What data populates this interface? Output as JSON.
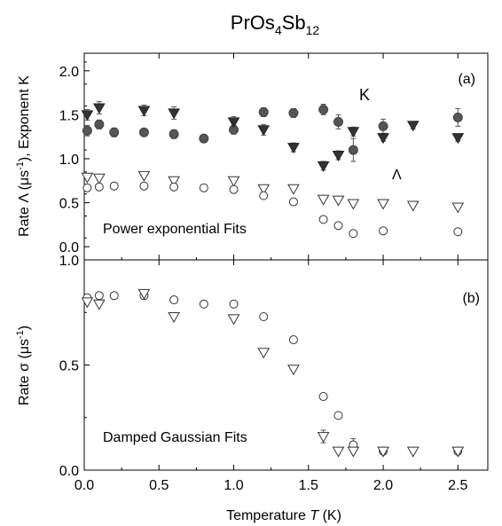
{
  "figure": {
    "title_main": "PrOs",
    "title_sub1": "4",
    "title_mid": "Sb",
    "title_sub2": "12",
    "xlabel_prefix": "Temperature ",
    "xlabel_var": "T",
    "xlabel_suffix": " (K)"
  },
  "chart_data": [
    {
      "panel": "(a)",
      "type": "scatter",
      "ylabel_prefix": "Rate Λ (μs",
      "ylabel_sup": "-1",
      "ylabel_suffix": "), Exponent K",
      "annotation": "Power exponential Fits",
      "series_label_K": "K",
      "series_label_Lambda": "Λ",
      "xlim": [
        0.0,
        2.7
      ],
      "ylim": [
        -0.15,
        2.2
      ],
      "xticks": [
        "0.0",
        "0.5",
        "1.0",
        "1.5",
        "2.0",
        "2.5"
      ],
      "yticks": [
        "0.0",
        "0.5",
        "1.0",
        "1.5",
        "2.0"
      ],
      "series": [
        {
          "marker": "filled-circle",
          "points": [
            {
              "x": 0.02,
              "y": 1.32,
              "err": 0.06
            },
            {
              "x": 0.1,
              "y": 1.39,
              "err": 0.05
            },
            {
              "x": 0.2,
              "y": 1.3,
              "err": 0.05
            },
            {
              "x": 0.4,
              "y": 1.3,
              "err": 0.04
            },
            {
              "x": 0.6,
              "y": 1.28,
              "err": 0.05
            },
            {
              "x": 0.8,
              "y": 1.23,
              "err": 0.04
            },
            {
              "x": 1.0,
              "y": 1.33,
              "err": 0.05
            },
            {
              "x": 1.2,
              "y": 1.53,
              "err": 0.05
            },
            {
              "x": 1.4,
              "y": 1.52,
              "err": 0.05
            },
            {
              "x": 1.6,
              "y": 1.56,
              "err": 0.06
            },
            {
              "x": 1.7,
              "y": 1.42,
              "err": 0.08
            },
            {
              "x": 1.8,
              "y": 1.1,
              "err": 0.13
            },
            {
              "x": 2.0,
              "y": 1.37,
              "err": 0.08
            },
            {
              "x": 2.5,
              "y": 1.47,
              "err": 0.1
            }
          ]
        },
        {
          "marker": "filled-triangle-down",
          "points": [
            {
              "x": 0.02,
              "y": 1.5,
              "err": 0.06
            },
            {
              "x": 0.1,
              "y": 1.58,
              "err": 0.07
            },
            {
              "x": 0.4,
              "y": 1.55,
              "err": 0.06
            },
            {
              "x": 0.6,
              "y": 1.52,
              "err": 0.07
            },
            {
              "x": 1.0,
              "y": 1.42,
              "err": 0.06
            },
            {
              "x": 1.2,
              "y": 1.33,
              "err": 0.06
            },
            {
              "x": 1.4,
              "y": 1.13,
              "err": 0.05
            },
            {
              "x": 1.6,
              "y": 0.92,
              "err": 0.05
            },
            {
              "x": 1.7,
              "y": 1.04,
              "err": 0.05
            },
            {
              "x": 1.8,
              "y": 1.31,
              "err": 0.05
            },
            {
              "x": 2.0,
              "y": 1.24,
              "err": 0.04
            },
            {
              "x": 2.2,
              "y": 1.38,
              "err": 0.04
            },
            {
              "x": 2.5,
              "y": 1.24,
              "err": 0.04
            }
          ]
        },
        {
          "marker": "open-triangle-down",
          "points": [
            {
              "x": 0.02,
              "y": 0.79
            },
            {
              "x": 0.1,
              "y": 0.78
            },
            {
              "x": 0.4,
              "y": 0.81
            },
            {
              "x": 0.6,
              "y": 0.75
            },
            {
              "x": 1.0,
              "y": 0.75
            },
            {
              "x": 1.2,
              "y": 0.66
            },
            {
              "x": 1.4,
              "y": 0.66
            },
            {
              "x": 1.6,
              "y": 0.54
            },
            {
              "x": 1.7,
              "y": 0.53
            },
            {
              "x": 1.8,
              "y": 0.49
            },
            {
              "x": 2.0,
              "y": 0.49
            },
            {
              "x": 2.2,
              "y": 0.47
            },
            {
              "x": 2.5,
              "y": 0.45
            }
          ]
        },
        {
          "marker": "open-circle",
          "points": [
            {
              "x": 0.02,
              "y": 0.67
            },
            {
              "x": 0.1,
              "y": 0.68
            },
            {
              "x": 0.2,
              "y": 0.69
            },
            {
              "x": 0.4,
              "y": 0.69
            },
            {
              "x": 0.6,
              "y": 0.68
            },
            {
              "x": 0.8,
              "y": 0.67
            },
            {
              "x": 1.0,
              "y": 0.65
            },
            {
              "x": 1.2,
              "y": 0.58
            },
            {
              "x": 1.4,
              "y": 0.51
            },
            {
              "x": 1.6,
              "y": 0.31
            },
            {
              "x": 1.7,
              "y": 0.24
            },
            {
              "x": 1.8,
              "y": 0.15
            },
            {
              "x": 2.0,
              "y": 0.18
            },
            {
              "x": 2.5,
              "y": 0.17
            }
          ]
        }
      ]
    },
    {
      "panel": "(b)",
      "type": "scatter",
      "ylabel_prefix": "Rate σ (μs",
      "ylabel_sup": "-1",
      "ylabel_suffix": ")",
      "annotation": "Damped Gaussian Fits",
      "xlim": [
        0.0,
        2.7
      ],
      "ylim": [
        0.0,
        1.0
      ],
      "xticks": [
        "0.0",
        "0.5",
        "1.0",
        "1.5",
        "2.0",
        "2.5"
      ],
      "yticks": [
        "0.0",
        "0.5",
        "1.0"
      ],
      "series": [
        {
          "marker": "open-circle",
          "points": [
            {
              "x": 0.02,
              "y": 0.82
            },
            {
              "x": 0.1,
              "y": 0.83
            },
            {
              "x": 0.2,
              "y": 0.83
            },
            {
              "x": 0.4,
              "y": 0.83
            },
            {
              "x": 0.6,
              "y": 0.81
            },
            {
              "x": 0.8,
              "y": 0.79
            },
            {
              "x": 1.0,
              "y": 0.79
            },
            {
              "x": 1.2,
              "y": 0.73
            },
            {
              "x": 1.4,
              "y": 0.62
            },
            {
              "x": 1.6,
              "y": 0.35
            },
            {
              "x": 1.7,
              "y": 0.26
            },
            {
              "x": 1.8,
              "y": 0.12,
              "err": 0.03
            },
            {
              "x": 2.0,
              "y": 0.09
            },
            {
              "x": 2.5,
              "y": 0.09
            }
          ]
        },
        {
          "marker": "open-triangle-down",
          "points": [
            {
              "x": 0.02,
              "y": 0.8
            },
            {
              "x": 0.1,
              "y": 0.79
            },
            {
              "x": 0.4,
              "y": 0.84
            },
            {
              "x": 0.6,
              "y": 0.73
            },
            {
              "x": 1.0,
              "y": 0.72
            },
            {
              "x": 1.2,
              "y": 0.56
            },
            {
              "x": 1.4,
              "y": 0.48
            },
            {
              "x": 1.6,
              "y": 0.16,
              "err": 0.03
            },
            {
              "x": 1.7,
              "y": 0.09
            },
            {
              "x": 1.8,
              "y": 0.09
            },
            {
              "x": 2.0,
              "y": 0.09
            },
            {
              "x": 2.2,
              "y": 0.09
            },
            {
              "x": 2.5,
              "y": 0.09
            }
          ]
        }
      ]
    }
  ]
}
